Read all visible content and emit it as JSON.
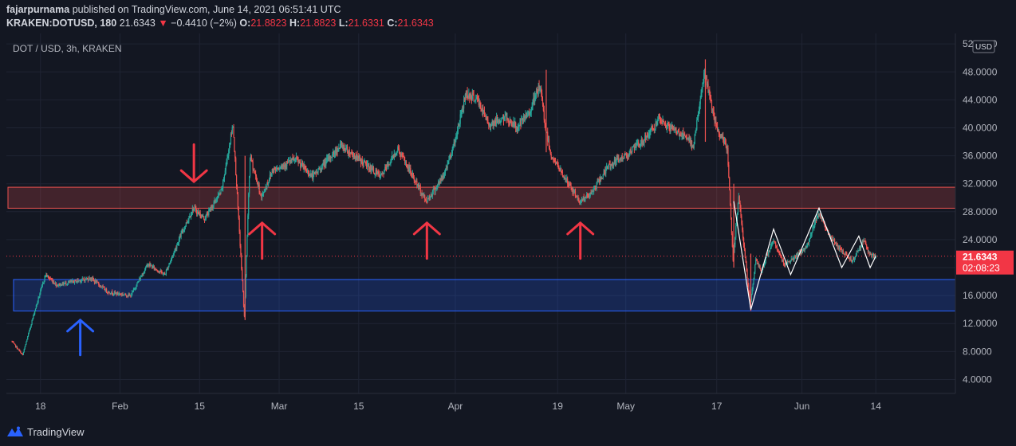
{
  "header": {
    "author": "fajarpurnama",
    "published_text": "published on TradingView.com, June 14, 2021 06:51:41 UTC",
    "symbol": "KRAKEN:DOTUSD, 180",
    "last": "21.6343",
    "change": "−0.4410 (−2%)",
    "ohlc": {
      "o_label": "O:",
      "o": "21.8823",
      "h_label": "H:",
      "h": "21.8823",
      "l_label": "L:",
      "l": "21.6331",
      "c_label": "C:",
      "c": "21.6343"
    }
  },
  "footer": {
    "brand": "TradingView"
  },
  "chart_data": {
    "type": "candlestick",
    "title": "DOT / USD, 3h, KRAKEN",
    "currency_label": "USD",
    "x_ticks": [
      "18",
      "Feb",
      "15",
      "Mar",
      "15",
      "Apr",
      "19",
      "May",
      "17",
      "Jun",
      "14"
    ],
    "y_ticks": [
      "4.0000",
      "8.0000",
      "12.0000",
      "16.0000",
      "20.0000",
      "24.0000",
      "28.0000",
      "32.0000",
      "36.0000",
      "40.0000",
      "44.0000",
      "48.0000",
      "52.0000"
    ],
    "ylim": [
      2.0,
      53.5
    ],
    "last_price_label": "21.6343",
    "countdown_label": "02:08:23",
    "last_price": 21.6343,
    "price_path_approx": [
      [
        "2021-01-13",
        9.5
      ],
      [
        "2021-01-15",
        7.5
      ],
      [
        "2021-01-17",
        13.5
      ],
      [
        "2021-01-19",
        19.0
      ],
      [
        "2021-01-21",
        17.5
      ],
      [
        "2021-01-24",
        18.0
      ],
      [
        "2021-01-27",
        18.5
      ],
      [
        "2021-01-30",
        16.5
      ],
      [
        "2021-02-03",
        16.0
      ],
      [
        "2021-02-06",
        20.5
      ],
      [
        "2021-02-09",
        19.0
      ],
      [
        "2021-02-12",
        25.0
      ],
      [
        "2021-02-14",
        28.5
      ],
      [
        "2021-02-16",
        27.0
      ],
      [
        "2021-02-19",
        31.0
      ],
      [
        "2021-02-21",
        40.5
      ],
      [
        "2021-02-23",
        13.0
      ],
      [
        "2021-02-24",
        36.0
      ],
      [
        "2021-02-26",
        30.0
      ],
      [
        "2021-02-28",
        34.0
      ],
      [
        "2021-03-04",
        35.5
      ],
      [
        "2021-03-07",
        33.0
      ],
      [
        "2021-03-12",
        37.5
      ],
      [
        "2021-03-16",
        35.0
      ],
      [
        "2021-03-19",
        33.0
      ],
      [
        "2021-03-22",
        37.0
      ],
      [
        "2021-03-25",
        32.5
      ],
      [
        "2021-03-27",
        29.5
      ],
      [
        "2021-03-30",
        33.0
      ],
      [
        "2021-04-01",
        38.0
      ],
      [
        "2021-04-03",
        45.0
      ],
      [
        "2021-04-05",
        44.0
      ],
      [
        "2021-04-07",
        40.5
      ],
      [
        "2021-04-10",
        41.5
      ],
      [
        "2021-04-12",
        40.0
      ],
      [
        "2021-04-14",
        42.0
      ],
      [
        "2021-04-16",
        46.0
      ],
      [
        "2021-04-17",
        40.0
      ],
      [
        "2021-04-18",
        36.0
      ],
      [
        "2021-04-21",
        32.0
      ],
      [
        "2021-04-23",
        29.5
      ],
      [
        "2021-04-25",
        30.5
      ],
      [
        "2021-04-28",
        34.5
      ],
      [
        "2021-05-01",
        36.0
      ],
      [
        "2021-05-04",
        38.0
      ],
      [
        "2021-05-07",
        41.0
      ],
      [
        "2021-05-09",
        40.0
      ],
      [
        "2021-05-11",
        39.0
      ],
      [
        "2021-05-13",
        37.5
      ],
      [
        "2021-05-15",
        48.0
      ],
      [
        "2021-05-17",
        40.0
      ],
      [
        "2021-05-19",
        37.0
      ],
      [
        "2021-05-20",
        21.0
      ],
      [
        "2021-05-21",
        30.5
      ],
      [
        "2021-05-23",
        14.5
      ],
      [
        "2021-05-24",
        21.0
      ],
      [
        "2021-05-25",
        19.5
      ],
      [
        "2021-05-27",
        24.0
      ],
      [
        "2021-05-29",
        20.5
      ],
      [
        "2021-05-31",
        21.5
      ],
      [
        "2021-06-02",
        23.0
      ],
      [
        "2021-06-04",
        28.0
      ],
      [
        "2021-06-06",
        24.5
      ],
      [
        "2021-06-08",
        22.5
      ],
      [
        "2021-06-10",
        21.0
      ],
      [
        "2021-06-12",
        24.0
      ],
      [
        "2021-06-13",
        21.8
      ],
      [
        "2021-06-14",
        21.6343
      ]
    ],
    "zones": [
      {
        "label": "",
        "from": 28.5,
        "to": 31.5,
        "color": "#ef5350"
      },
      {
        "label": "",
        "from": 13.8,
        "to": 18.3,
        "color": "#2962ff"
      }
    ],
    "annotations": [
      {
        "type": "arrow-down",
        "date": "2021-02-14",
        "color": "#f23645"
      },
      {
        "type": "arrow-up",
        "date": "2021-02-26",
        "color": "#f23645"
      },
      {
        "type": "arrow-up",
        "date": "2021-03-27",
        "color": "#f23645"
      },
      {
        "type": "arrow-up",
        "date": "2021-04-23",
        "color": "#f23645"
      },
      {
        "type": "arrow-up",
        "date": "2021-01-25",
        "color": "#2962ff"
      }
    ],
    "zigzag": [
      [
        "2021-05-20",
        29.5
      ],
      [
        "2021-05-23",
        14.0
      ],
      [
        "2021-05-27",
        25.5
      ],
      [
        "2021-05-30",
        19.0
      ],
      [
        "2021-06-04",
        28.5
      ],
      [
        "2021-06-08",
        20.0
      ],
      [
        "2021-06-11",
        24.5
      ],
      [
        "2021-06-13",
        20.0
      ],
      [
        "2021-06-14",
        21.6343
      ]
    ],
    "colors": {
      "up": "#26a69a",
      "down": "#ef5350",
      "grid": "#1f2433",
      "background": "#131722",
      "zigzag": "#ffffff"
    }
  }
}
